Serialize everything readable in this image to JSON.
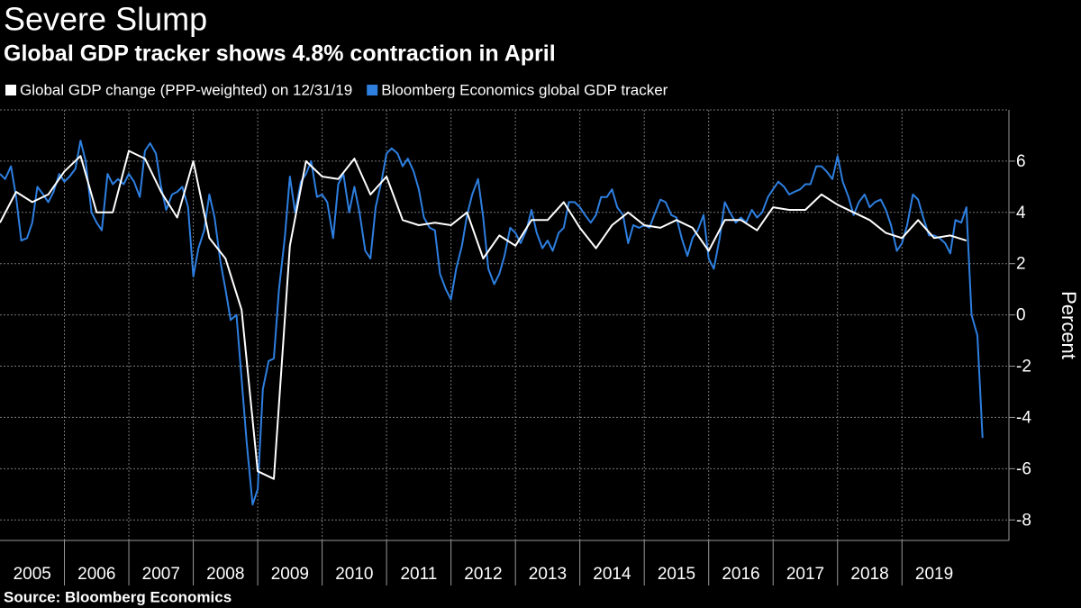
{
  "chart_data": {
    "type": "line",
    "title": "Severe Slump",
    "subtitle": "Global GDP tracker shows 4.8% contraction in April",
    "source": "Source: Bloomberg Economics",
    "y_label": "Percent",
    "xlim": [
      2005,
      2020.66
    ],
    "xticks": [
      2005,
      2006,
      2007,
      2008,
      2009,
      2010,
      2011,
      2012,
      2013,
      2014,
      2015,
      2016,
      2017,
      2018,
      2019
    ],
    "ylim": [
      -8.8,
      8
    ],
    "yticks": [
      -8,
      -6,
      -4,
      -2,
      0,
      2,
      4,
      6
    ],
    "grid": true,
    "series": [
      {
        "name": "Global GDP change (PPP-weighted) on 12/31/19",
        "color": "#ffffff",
        "x": [
          2005,
          2005.25,
          2005.5,
          2005.75,
          2006,
          2006.25,
          2006.5,
          2006.75,
          2007,
          2007.25,
          2007.5,
          2007.75,
          2008,
          2008.25,
          2008.5,
          2008.75,
          2009,
          2009.25,
          2009.5,
          2009.75,
          2010,
          2010.25,
          2010.5,
          2010.75,
          2011,
          2011.25,
          2011.5,
          2011.75,
          2012,
          2012.25,
          2012.5,
          2012.75,
          2013,
          2013.25,
          2013.5,
          2013.75,
          2014,
          2014.25,
          2014.5,
          2014.75,
          2015,
          2015.25,
          2015.5,
          2015.75,
          2016,
          2016.25,
          2016.5,
          2016.75,
          2017,
          2017.25,
          2017.5,
          2017.75,
          2018,
          2018.25,
          2018.5,
          2018.75,
          2019,
          2019.25,
          2019.5,
          2019.75,
          2020
        ],
        "values": [
          3.6,
          4.8,
          4.4,
          4.7,
          5.6,
          6.2,
          4.0,
          4.0,
          6.4,
          6.1,
          4.8,
          3.8,
          6.0,
          3.0,
          2.2,
          0.2,
          -6.1,
          -6.4,
          2.7,
          6.0,
          5.4,
          5.3,
          6.1,
          4.7,
          5.4,
          3.7,
          3.5,
          3.6,
          3.5,
          4.0,
          2.2,
          3.1,
          2.7,
          3.7,
          3.7,
          4.4,
          3.4,
          2.6,
          3.5,
          4.0,
          3.5,
          3.4,
          3.7,
          3.4,
          2.5,
          3.7,
          3.7,
          3.3,
          4.2,
          4.1,
          4.1,
          4.7,
          4.3,
          4.0,
          3.7,
          3.2,
          3.0,
          3.7,
          3.0,
          3.1,
          2.9
        ]
      },
      {
        "name": "Bloomberg Economics global GDP tracker",
        "color": "#2e7fe0",
        "x": [
          2005,
          2005.08,
          2005.17,
          2005.25,
          2005.33,
          2005.42,
          2005.5,
          2005.58,
          2005.67,
          2005.75,
          2005.83,
          2005.92,
          2006,
          2006.08,
          2006.17,
          2006.25,
          2006.33,
          2006.42,
          2006.5,
          2006.58,
          2006.67,
          2006.75,
          2006.83,
          2006.92,
          2007,
          2007.08,
          2007.17,
          2007.25,
          2007.33,
          2007.42,
          2007.5,
          2007.58,
          2007.67,
          2007.75,
          2007.83,
          2007.92,
          2008,
          2008.08,
          2008.17,
          2008.25,
          2008.33,
          2008.42,
          2008.5,
          2008.58,
          2008.67,
          2008.75,
          2008.83,
          2008.92,
          2009,
          2009.08,
          2009.17,
          2009.25,
          2009.33,
          2009.42,
          2009.5,
          2009.58,
          2009.67,
          2009.75,
          2009.83,
          2009.92,
          2010,
          2010.08,
          2010.17,
          2010.25,
          2010.33,
          2010.42,
          2010.5,
          2010.58,
          2010.67,
          2010.75,
          2010.83,
          2010.92,
          2011,
          2011.08,
          2011.17,
          2011.25,
          2011.33,
          2011.42,
          2011.5,
          2011.58,
          2011.67,
          2011.75,
          2011.83,
          2011.92,
          2012,
          2012.08,
          2012.17,
          2012.25,
          2012.33,
          2012.42,
          2012.5,
          2012.58,
          2012.67,
          2012.75,
          2012.83,
          2012.92,
          2013,
          2013.08,
          2013.17,
          2013.25,
          2013.33,
          2013.42,
          2013.5,
          2013.58,
          2013.67,
          2013.75,
          2013.83,
          2013.92,
          2014,
          2014.08,
          2014.17,
          2014.25,
          2014.33,
          2014.42,
          2014.5,
          2014.58,
          2014.67,
          2014.75,
          2014.83,
          2014.92,
          2015,
          2015.08,
          2015.17,
          2015.25,
          2015.33,
          2015.42,
          2015.5,
          2015.58,
          2015.67,
          2015.75,
          2015.83,
          2015.92,
          2016,
          2016.08,
          2016.17,
          2016.25,
          2016.33,
          2016.42,
          2016.5,
          2016.58,
          2016.67,
          2016.75,
          2016.83,
          2016.92,
          2017,
          2017.08,
          2017.17,
          2017.25,
          2017.33,
          2017.42,
          2017.5,
          2017.58,
          2017.67,
          2017.75,
          2017.83,
          2017.92,
          2018,
          2018.08,
          2018.17,
          2018.25,
          2018.33,
          2018.42,
          2018.5,
          2018.58,
          2018.67,
          2018.75,
          2018.83,
          2018.92,
          2019,
          2019.08,
          2019.17,
          2019.25,
          2019.33,
          2019.42,
          2019.5,
          2019.58,
          2019.67,
          2019.75,
          2019.83,
          2019.92,
          2020,
          2020.08,
          2020.17,
          2020.25
        ],
        "values": [
          5.5,
          5.3,
          5.8,
          4.6,
          2.9,
          3.0,
          3.6,
          5.0,
          4.7,
          4.4,
          4.8,
          5.5,
          5.2,
          5.4,
          5.7,
          6.8,
          6.0,
          4.0,
          3.6,
          3.3,
          5.5,
          5.1,
          5.3,
          5.1,
          5.5,
          5.2,
          4.6,
          6.4,
          6.7,
          6.3,
          5.0,
          4.1,
          4.7,
          4.8,
          5.0,
          4.2,
          1.5,
          2.6,
          3.3,
          4.7,
          3.8,
          2.1,
          1.0,
          -0.2,
          0.0,
          -2.5,
          -5.0,
          -7.4,
          -6.8,
          -2.9,
          -1.8,
          -1.7,
          1.0,
          3.0,
          5.4,
          4.0,
          5.2,
          5.5,
          6.0,
          4.6,
          4.7,
          4.4,
          3.0,
          5.1,
          5.5,
          4.0,
          5.0,
          4.0,
          2.5,
          2.2,
          4.2,
          5.2,
          6.3,
          6.5,
          6.3,
          5.8,
          6.1,
          5.6,
          4.9,
          3.8,
          3.4,
          3.3,
          1.6,
          1.0,
          0.6,
          1.8,
          2.7,
          3.9,
          4.7,
          5.3,
          3.8,
          1.8,
          1.2,
          1.6,
          2.3,
          3.4,
          3.2,
          2.8,
          3.3,
          4.1,
          3.2,
          2.6,
          2.9,
          2.5,
          3.2,
          3.4,
          4.4,
          4.4,
          4.2,
          3.9,
          3.6,
          3.9,
          4.6,
          4.6,
          4.9,
          4.2,
          3.9,
          2.8,
          3.5,
          3.4,
          3.5,
          3.4,
          4.0,
          4.5,
          4.4,
          3.9,
          3.8,
          3.0,
          2.3,
          3.0,
          3.3,
          3.9,
          2.2,
          1.8,
          3.0,
          4.4,
          4.0,
          3.6,
          3.8,
          3.6,
          4.1,
          3.8,
          4.0,
          4.6,
          4.9,
          5.2,
          5.0,
          4.7,
          4.8,
          4.9,
          5.1,
          5.1,
          5.8,
          5.8,
          5.6,
          5.3,
          6.2,
          5.2,
          4.6,
          3.9,
          4.4,
          4.7,
          4.2,
          4.4,
          4.5,
          4.1,
          3.5,
          2.5,
          2.8,
          3.5,
          4.7,
          4.5,
          3.8,
          3.1,
          3.1,
          3.0,
          2.8,
          2.4,
          3.7,
          3.6,
          4.2,
          0.0,
          -0.8,
          -4.8
        ]
      }
    ]
  }
}
